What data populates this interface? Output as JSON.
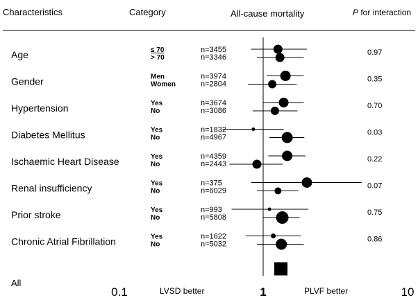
{
  "header": {
    "characteristics": "Characteristics",
    "category": "Category",
    "outcome": "All-cause mortality",
    "p_prefix": "P",
    "p_suffix": " for interaction"
  },
  "chart_data": {
    "type": "forest",
    "x_scale": "log",
    "xlim": [
      0.1,
      10
    ],
    "x_tick_labels": [
      "0.1",
      "1",
      "10"
    ],
    "left_label": "LVSD better",
    "right_label": "PLVF better",
    "groups": [
      {
        "name": "Age",
        "p": "0.97",
        "rows": [
          {
            "category": "≤ 70",
            "n": "n=3455",
            "hr": 1.26,
            "lo": 0.82,
            "hi": 2.0
          },
          {
            "category": "> 70",
            "n": "n=3346",
            "hr": 1.3,
            "lo": 0.9,
            "hi": 1.9
          }
        ]
      },
      {
        "name": "Gender",
        "p": "0.35",
        "rows": [
          {
            "category": "Men",
            "n": "n=3974",
            "hr": 1.42,
            "lo": 1.05,
            "hi": 1.9
          },
          {
            "category": "Women",
            "n": "n=2804",
            "hr": 1.15,
            "lo": 0.78,
            "hi": 1.7
          }
        ]
      },
      {
        "name": "Hypertension",
        "p": "0.70",
        "rows": [
          {
            "category": "Yes",
            "n": "n=3674",
            "hr": 1.38,
            "lo": 1.0,
            "hi": 1.9
          },
          {
            "category": "No",
            "n": "n=3086",
            "hr": 1.2,
            "lo": 0.84,
            "hi": 1.72
          }
        ]
      },
      {
        "name": "Diabetes Mellitus",
        "p": "0.03",
        "rows": [
          {
            "category": "Yes",
            "n": "n=1832",
            "hr": 0.85,
            "lo": 0.52,
            "hi": 1.38
          },
          {
            "category": "No",
            "n": "n=4967",
            "hr": 1.46,
            "lo": 1.1,
            "hi": 1.92
          }
        ]
      },
      {
        "name": "Ischaemic Heart Disease",
        "p": "0.22",
        "rows": [
          {
            "category": "Yes",
            "n": "n=4359",
            "hr": 1.46,
            "lo": 1.08,
            "hi": 1.96
          },
          {
            "category": "No",
            "n": "n=2443",
            "hr": 0.9,
            "lo": 0.58,
            "hi": 1.36
          }
        ]
      },
      {
        "name": "Renal insufficiency",
        "p": "0.07",
        "rows": [
          {
            "category": "Yes",
            "n": "n=375",
            "hr": 2.0,
            "lo": 0.82,
            "hi": 4.8
          },
          {
            "category": "No",
            "n": "n=6029",
            "hr": 1.26,
            "lo": 0.9,
            "hi": 1.75
          }
        ]
      },
      {
        "name": "Prior stroke",
        "p": "0.75",
        "rows": [
          {
            "category": "Yes",
            "n": "n=993",
            "hr": 1.1,
            "lo": 0.6,
            "hi": 2.05
          },
          {
            "category": "No",
            "n": "n=5808",
            "hr": 1.35,
            "lo": 1.0,
            "hi": 1.78
          }
        ]
      },
      {
        "name": "Chronic Atrial Fibrillation",
        "p": "0.86",
        "rows": [
          {
            "category": "Yes",
            "n": "n=1622",
            "hr": 1.17,
            "lo": 0.75,
            "hi": 1.82
          },
          {
            "category": "No",
            "n": "n=5032",
            "hr": 1.33,
            "lo": 0.9,
            "hi": 1.9
          }
        ]
      }
    ],
    "overall": {
      "name": "All",
      "hr": 1.32,
      "lo": 1.2,
      "hi": 1.45
    }
  }
}
